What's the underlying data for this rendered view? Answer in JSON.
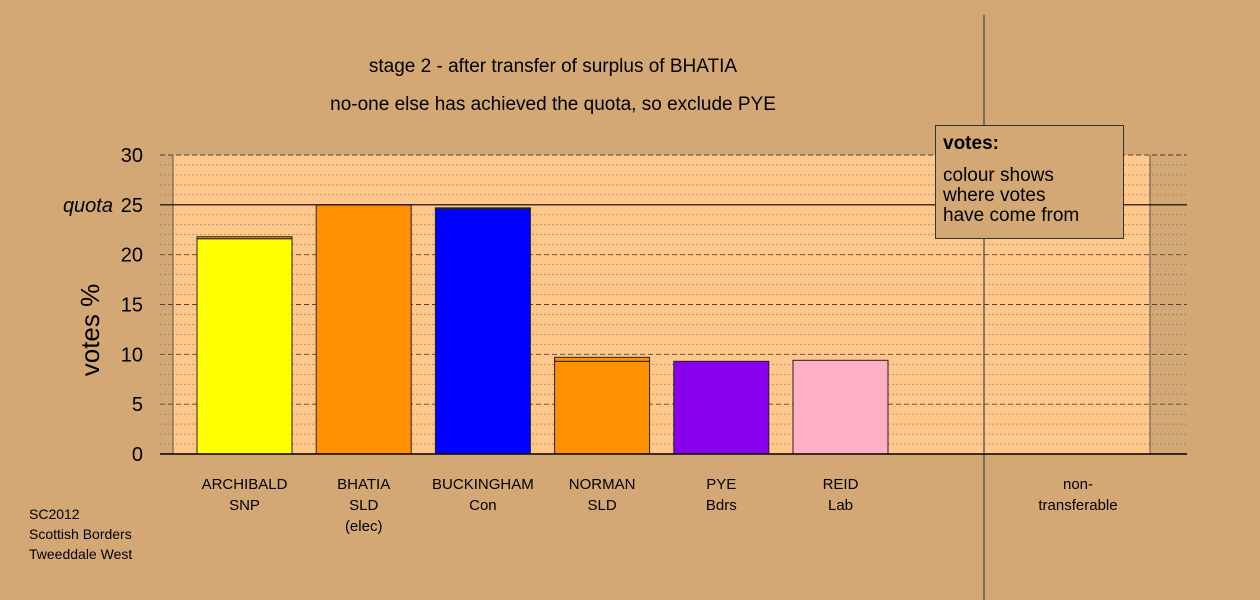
{
  "chart_data": {
    "type": "bar",
    "title": "stage 2 - after transfer of surplus of BHATIA",
    "subtitle": "no-one else has achieved the quota, so exclude PYE",
    "ylabel": "votes %",
    "ylim": [
      0,
      30
    ],
    "yticks": [
      0,
      5,
      10,
      15,
      20,
      25,
      30
    ],
    "quota": 25,
    "quota_label": "quota",
    "categories": [
      {
        "name": "ARCHIBALD",
        "party": "SNP",
        "note": "",
        "value": 21.8,
        "transferred": 0.2,
        "color": "#ffff00"
      },
      {
        "name": "BHATIA",
        "party": "SLD",
        "note": "(elec)",
        "value": 25.0,
        "transferred": 0.0,
        "color": "#ff9000"
      },
      {
        "name": "BUCKINGHAM",
        "party": "Con",
        "note": "",
        "value": 24.7,
        "transferred": 0.1,
        "color": "#0000ff"
      },
      {
        "name": "NORMAN",
        "party": "SLD",
        "note": "",
        "value": 9.7,
        "transferred": 0.4,
        "color": "#ff9000"
      },
      {
        "name": "PYE",
        "party": "Bdrs",
        "note": "",
        "value": 9.3,
        "transferred": 0.0,
        "color": "#8800ee"
      },
      {
        "name": "REID",
        "party": "Lab",
        "note": "",
        "value": 9.4,
        "transferred": 0.0,
        "color": "#ffb0c4"
      }
    ],
    "nontransferable": {
      "name": "non-",
      "name2": "transferable",
      "value": 0
    },
    "legend": {
      "title": "votes:",
      "lines": [
        "colour shows",
        "where votes",
        "have come from"
      ],
      "placement": "top-right"
    },
    "colors": {
      "background": "#d4a874",
      "plot_area": "#ffc88a",
      "grid": "#555555"
    }
  },
  "footer": [
    "SC2012",
    "Scottish Borders",
    "Tweeddale West"
  ]
}
